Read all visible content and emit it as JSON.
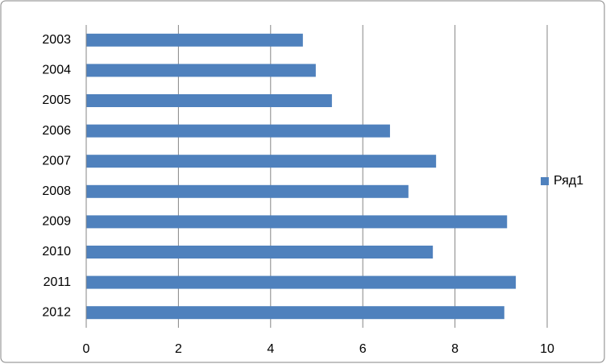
{
  "chart_data": {
    "type": "hbar",
    "categories": [
      "2003",
      "2004",
      "2005",
      "2006",
      "2007",
      "2008",
      "2009",
      "2010",
      "2011",
      "2012"
    ],
    "series": [
      {
        "name": "Ряд1",
        "color": "#4f81bd",
        "values": [
          4.7,
          4.98,
          5.33,
          6.59,
          7.59,
          6.99,
          9.13,
          7.52,
          9.32,
          9.07
        ]
      }
    ],
    "xlim": [
      0,
      10
    ],
    "xticks": [
      0,
      2,
      4,
      6,
      8,
      10
    ],
    "grid": true,
    "legend": "right"
  }
}
